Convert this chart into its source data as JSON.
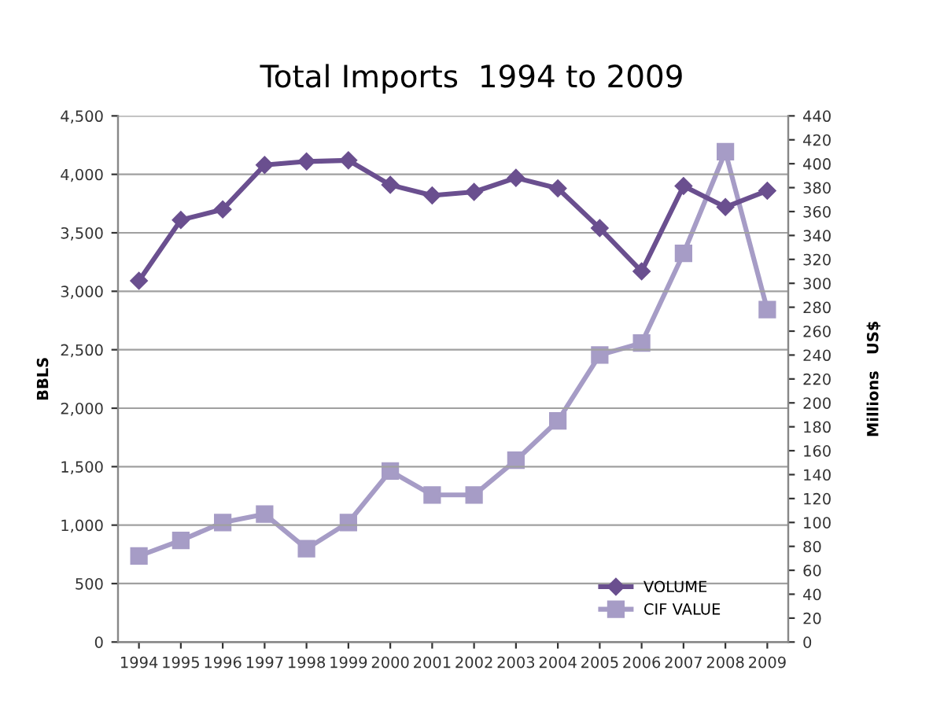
{
  "chart_data": {
    "type": "line",
    "title": "Total Imports  1994 to 2009",
    "ylabel": "BBLS",
    "y2label": "Millions   US$",
    "categories": [
      "1994",
      "1995",
      "1996",
      "1997",
      "1998",
      "1999",
      "2000",
      "2001",
      "2002",
      "2003",
      "2004",
      "2005",
      "2006",
      "2007",
      "2008",
      "2009"
    ],
    "series": [
      {
        "name": "VOLUME",
        "color": "#6a4f8f",
        "marker": "diamond",
        "values": [
          3090,
          3610,
          3700,
          4080,
          4110,
          4120,
          3910,
          3820,
          3850,
          3970,
          3880,
          3540,
          3170,
          3900,
          3720,
          3860
        ]
      },
      {
        "name": "CIF VALUE",
        "color": "#a69cc6",
        "marker": "square",
        "axis": "y2",
        "values": [
          72,
          85,
          100,
          107,
          78,
          100,
          143,
          123,
          123,
          152,
          185,
          240,
          250,
          325,
          410,
          278
        ]
      }
    ],
    "ylim": [
      0,
      4500
    ],
    "yticks": [
      {
        "value": 0,
        "label": "0"
      },
      {
        "value": 500,
        "label": "500"
      },
      {
        "value": 1000,
        "label": "1,000"
      },
      {
        "value": 1500,
        "label": "1,500"
      },
      {
        "value": 2000,
        "label": "2,000"
      },
      {
        "value": 2500,
        "label": "2,500"
      },
      {
        "value": 3000,
        "label": "3,000"
      },
      {
        "value": 3500,
        "label": "3,500"
      },
      {
        "value": 4000,
        "label": "4,000"
      },
      {
        "value": 4500,
        "label": "4,500"
      }
    ],
    "y2lim": [
      0,
      440
    ],
    "y2ticks": [
      0,
      20,
      40,
      60,
      80,
      100,
      120,
      140,
      160,
      180,
      200,
      220,
      240,
      260,
      280,
      300,
      320,
      340,
      360,
      380,
      400,
      420,
      440
    ],
    "grid": "y",
    "legend": "bottom right"
  }
}
